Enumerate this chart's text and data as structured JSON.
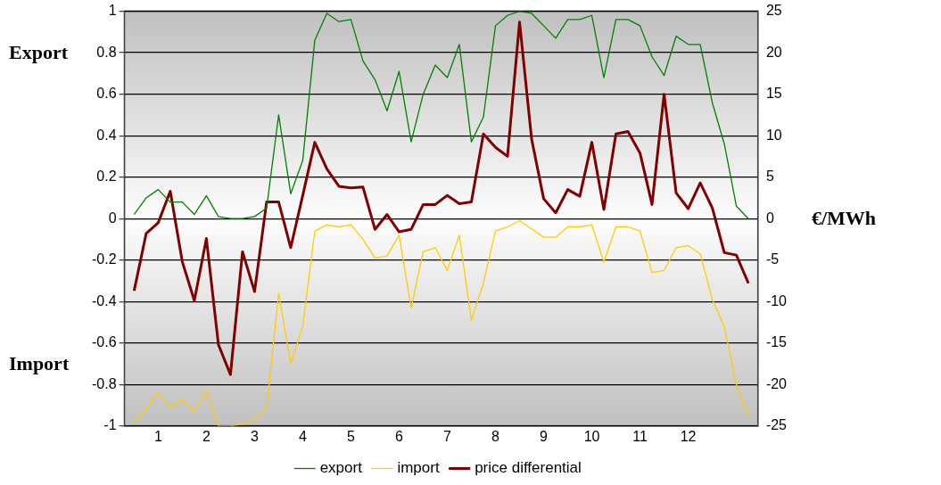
{
  "chart_data": {
    "type": "line",
    "x": [
      0.5,
      0.75,
      1,
      1.25,
      1.5,
      1.75,
      2,
      2.25,
      2.5,
      2.75,
      3,
      3.25,
      3.5,
      3.75,
      4,
      4.25,
      4.5,
      4.75,
      5,
      5.25,
      5.5,
      5.75,
      6,
      6.25,
      6.5,
      6.75,
      7,
      7.25,
      7.5,
      7.75,
      8,
      8.25,
      8.5,
      8.75,
      9,
      9.25,
      9.5,
      9.75,
      10,
      10.25,
      10.5,
      10.75,
      11,
      11.25,
      11.5,
      11.75,
      12,
      12.25,
      12.5,
      12.75,
      13,
      13.25
    ],
    "xlim": [
      0.3,
      13.45
    ],
    "xticks": [
      1,
      2,
      3,
      4,
      5,
      6,
      7,
      8,
      9,
      10,
      11,
      12
    ],
    "ylim": [
      -1,
      1
    ],
    "yticks": [
      -1,
      -0.8,
      -0.6,
      -0.4,
      -0.2,
      0,
      0.2,
      0.4,
      0.6,
      0.8,
      1
    ],
    "y2lim": [
      -25,
      25
    ],
    "y2ticks": [
      -25,
      -20,
      -15,
      -10,
      -5,
      0,
      5,
      10,
      15,
      20,
      25
    ],
    "y2label": "€/MWh",
    "annotations": [
      "Export",
      "Import"
    ],
    "grid": "y",
    "legend": "bottom",
    "marker": "none",
    "line_style": "solid",
    "series": [
      {
        "name": "export",
        "color": "#008000",
        "values": [
          0.02,
          0.1,
          0.14,
          0.08,
          0.08,
          0.02,
          0.11,
          0.01,
          0,
          0,
          0.01,
          0.05,
          0.5,
          0.12,
          0.28,
          0.86,
          0.99,
          0.95,
          0.96,
          0.76,
          0.67,
          0.52,
          0.71,
          0.37,
          0.6,
          0.74,
          0.68,
          0.84,
          0.37,
          0.49,
          0.93,
          0.98,
          1.0,
          0.99,
          0.93,
          0.87,
          0.96,
          0.96,
          0.98,
          0.68,
          0.96,
          0.96,
          0.93,
          0.78,
          0.69,
          0.88,
          0.84,
          0.84,
          0.56,
          0.36,
          0.06,
          0
        ]
      },
      {
        "name": "import",
        "color": "#ffcc00",
        "values": [
          -0.98,
          -0.92,
          -0.84,
          -0.91,
          -0.87,
          -0.93,
          -0.83,
          -1.0,
          -1.0,
          -0.99,
          -0.97,
          -0.91,
          -0.36,
          -0.7,
          -0.52,
          -0.06,
          -0.03,
          -0.04,
          -0.03,
          -0.1,
          -0.19,
          -0.18,
          -0.08,
          -0.43,
          -0.16,
          -0.14,
          -0.25,
          -0.08,
          -0.49,
          -0.31,
          -0.06,
          -0.04,
          -0.01,
          -0.05,
          -0.09,
          -0.09,
          -0.04,
          -0.04,
          -0.03,
          -0.21,
          -0.04,
          -0.04,
          -0.06,
          -0.26,
          -0.25,
          -0.14,
          -0.13,
          -0.17,
          -0.39,
          -0.52,
          -0.8,
          -0.95
        ]
      },
      {
        "name": "price differential",
        "color": "#800000",
        "axis": "y2",
        "values": [
          -8.7,
          -1.8,
          -0.5,
          3.3,
          -5.2,
          -9.9,
          -2.4,
          -15.2,
          -18.8,
          -4.0,
          -8.8,
          2.0,
          2.0,
          -3.5,
          2.8,
          9.2,
          6.0,
          3.9,
          3.7,
          3.8,
          -1.3,
          0.5,
          -1.6,
          -1.3,
          1.7,
          1.7,
          2.8,
          1.8,
          2.0,
          10.2,
          8.6,
          7.5,
          23.7,
          9.6,
          2.4,
          0.7,
          3.5,
          2.7,
          9.2,
          1.1,
          10.2,
          10.5,
          7.9,
          1.7,
          15.0,
          3.1,
          1.2,
          4.3,
          1.3,
          -4.1,
          -4.4,
          -7.8
        ]
      }
    ]
  }
}
